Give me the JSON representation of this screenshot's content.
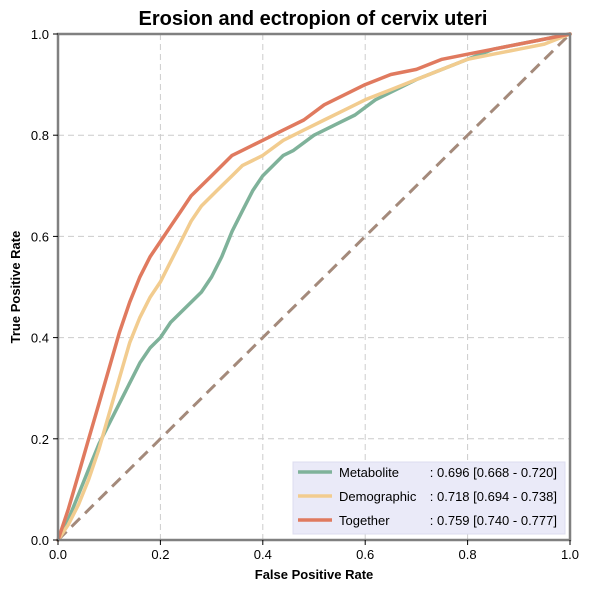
{
  "chart_data": {
    "type": "line",
    "title": "Erosion and ectropion of cervix uteri",
    "xlabel": "False Positive Rate",
    "ylabel": "True Positive Rate",
    "xlim": [
      0,
      1
    ],
    "ylim": [
      0,
      1
    ],
    "grid": true,
    "legend_position": "bottom-right",
    "x_ticks": [
      "0.0",
      "0.2",
      "0.4",
      "0.6",
      "0.8",
      "1.0"
    ],
    "y_ticks": [
      "0.0",
      "0.2",
      "0.4",
      "0.6",
      "0.8",
      "1.0"
    ],
    "series": [
      {
        "name": "Metabolite",
        "stat": ": 0.696 [0.668 - 0.720]",
        "color": "#7fb29a",
        "points": [
          [
            0,
            0
          ],
          [
            0.02,
            0.04
          ],
          [
            0.04,
            0.09
          ],
          [
            0.06,
            0.14
          ],
          [
            0.08,
            0.19
          ],
          [
            0.1,
            0.23
          ],
          [
            0.12,
            0.27
          ],
          [
            0.14,
            0.31
          ],
          [
            0.16,
            0.35
          ],
          [
            0.18,
            0.38
          ],
          [
            0.2,
            0.4
          ],
          [
            0.22,
            0.43
          ],
          [
            0.24,
            0.45
          ],
          [
            0.26,
            0.47
          ],
          [
            0.28,
            0.49
          ],
          [
            0.3,
            0.52
          ],
          [
            0.32,
            0.56
          ],
          [
            0.34,
            0.61
          ],
          [
            0.36,
            0.65
          ],
          [
            0.38,
            0.69
          ],
          [
            0.4,
            0.72
          ],
          [
            0.42,
            0.74
          ],
          [
            0.44,
            0.76
          ],
          [
            0.46,
            0.77
          ],
          [
            0.5,
            0.8
          ],
          [
            0.54,
            0.82
          ],
          [
            0.58,
            0.84
          ],
          [
            0.62,
            0.87
          ],
          [
            0.66,
            0.89
          ],
          [
            0.7,
            0.91
          ],
          [
            0.75,
            0.93
          ],
          [
            0.8,
            0.95
          ],
          [
            0.85,
            0.97
          ],
          [
            0.9,
            0.98
          ],
          [
            0.95,
            0.99
          ],
          [
            1,
            1
          ]
        ]
      },
      {
        "name": "Demographic",
        "stat": ": 0.718 [0.694 - 0.738]",
        "color": "#f2cc8f",
        "points": [
          [
            0,
            0
          ],
          [
            0.02,
            0.03
          ],
          [
            0.04,
            0.07
          ],
          [
            0.06,
            0.12
          ],
          [
            0.08,
            0.18
          ],
          [
            0.1,
            0.25
          ],
          [
            0.12,
            0.32
          ],
          [
            0.14,
            0.39
          ],
          [
            0.16,
            0.44
          ],
          [
            0.18,
            0.48
          ],
          [
            0.2,
            0.51
          ],
          [
            0.22,
            0.55
          ],
          [
            0.24,
            0.59
          ],
          [
            0.26,
            0.63
          ],
          [
            0.28,
            0.66
          ],
          [
            0.3,
            0.68
          ],
          [
            0.32,
            0.7
          ],
          [
            0.34,
            0.72
          ],
          [
            0.36,
            0.74
          ],
          [
            0.38,
            0.75
          ],
          [
            0.4,
            0.76
          ],
          [
            0.44,
            0.79
          ],
          [
            0.48,
            0.81
          ],
          [
            0.52,
            0.83
          ],
          [
            0.56,
            0.85
          ],
          [
            0.6,
            0.87
          ],
          [
            0.65,
            0.89
          ],
          [
            0.7,
            0.91
          ],
          [
            0.75,
            0.93
          ],
          [
            0.8,
            0.95
          ],
          [
            0.85,
            0.96
          ],
          [
            0.9,
            0.97
          ],
          [
            0.95,
            0.98
          ],
          [
            1,
            1
          ]
        ]
      },
      {
        "name": "Together",
        "stat": ": 0.759 [0.740 - 0.777]",
        "color": "#e07a5f",
        "points": [
          [
            0,
            0
          ],
          [
            0.02,
            0.06
          ],
          [
            0.04,
            0.13
          ],
          [
            0.06,
            0.2
          ],
          [
            0.08,
            0.27
          ],
          [
            0.1,
            0.34
          ],
          [
            0.12,
            0.41
          ],
          [
            0.14,
            0.47
          ],
          [
            0.16,
            0.52
          ],
          [
            0.18,
            0.56
          ],
          [
            0.2,
            0.59
          ],
          [
            0.22,
            0.62
          ],
          [
            0.24,
            0.65
          ],
          [
            0.26,
            0.68
          ],
          [
            0.28,
            0.7
          ],
          [
            0.3,
            0.72
          ],
          [
            0.32,
            0.74
          ],
          [
            0.34,
            0.76
          ],
          [
            0.36,
            0.77
          ],
          [
            0.38,
            0.78
          ],
          [
            0.4,
            0.79
          ],
          [
            0.44,
            0.81
          ],
          [
            0.48,
            0.83
          ],
          [
            0.52,
            0.86
          ],
          [
            0.56,
            0.88
          ],
          [
            0.6,
            0.9
          ],
          [
            0.65,
            0.92
          ],
          [
            0.7,
            0.93
          ],
          [
            0.75,
            0.95
          ],
          [
            0.8,
            0.96
          ],
          [
            0.85,
            0.97
          ],
          [
            0.9,
            0.98
          ],
          [
            0.95,
            0.99
          ],
          [
            1,
            1
          ]
        ]
      }
    ],
    "diagonal": {
      "points": [
        [
          0,
          0
        ],
        [
          1,
          1
        ]
      ],
      "color": "#a48a7b"
    }
  }
}
